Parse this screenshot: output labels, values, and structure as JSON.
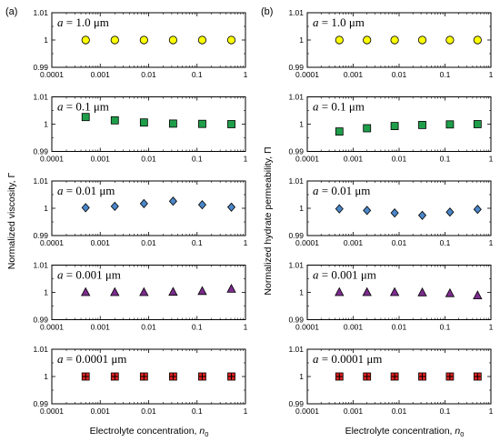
{
  "figure": {
    "panel_labels": [
      "(a)",
      "(b)"
    ],
    "ylabels": [
      "Normalized viscosity, Γ",
      "Normalized hydrate permeability, Π"
    ],
    "xlabel_text": "Electrolyte concentration, ",
    "xlabel_symbol": "n",
    "xlabel_sub": "0"
  },
  "chart_data": [
    {
      "type": "scatter",
      "column": 0,
      "row": 0,
      "annotation": {
        "var": "a",
        "text": " = 1.0 μm"
      },
      "x": [
        0.0005,
        0.002,
        0.008,
        0.032,
        0.128,
        0.512
      ],
      "y": [
        1.0,
        1.0,
        1.0,
        1.0,
        1.0,
        1.0
      ],
      "marker": "circle",
      "color": "#ffff00",
      "xscale": "log",
      "xlim": [
        0.0001,
        1
      ],
      "ylim": [
        0.99,
        1.01
      ],
      "xticks": [
        "0.0001",
        "0.001",
        "0.01",
        "0.1",
        "1"
      ],
      "yticks": [
        "0.99",
        "1",
        "1.01"
      ]
    },
    {
      "type": "scatter",
      "column": 0,
      "row": 1,
      "annotation": {
        "var": "a",
        "text": " = 0.1 μm"
      },
      "x": [
        0.0005,
        0.002,
        0.008,
        0.032,
        0.128,
        0.512
      ],
      "y": [
        1.0026,
        1.0014,
        1.0006,
        1.0002,
        1.0001,
        1.0
      ],
      "marker": "square",
      "color": "#1f9e4a",
      "xscale": "log",
      "xlim": [
        0.0001,
        1
      ],
      "ylim": [
        0.99,
        1.01
      ],
      "xticks": [
        "0.0001",
        "0.001",
        "0.01",
        "0.1",
        "1"
      ],
      "yticks": [
        "0.99",
        "1",
        "1.01"
      ]
    },
    {
      "type": "scatter",
      "column": 0,
      "row": 2,
      "annotation": {
        "var": "a",
        "text": " = 0.01 μm"
      },
      "x": [
        0.0005,
        0.002,
        0.008,
        0.032,
        0.128,
        0.512
      ],
      "y": [
        1.0002,
        1.0007,
        1.0017,
        1.0026,
        1.0013,
        1.0004
      ],
      "marker": "diamond",
      "color": "#4a86c8",
      "xscale": "log",
      "xlim": [
        0.0001,
        1
      ],
      "ylim": [
        0.99,
        1.01
      ],
      "xticks": [
        "0.0001",
        "0.001",
        "0.01",
        "0.1",
        "1"
      ],
      "yticks": [
        "0.99",
        "1",
        "1.01"
      ]
    },
    {
      "type": "scatter",
      "column": 0,
      "row": 3,
      "annotation": {
        "var": "a",
        "text": " = 0.001 μm"
      },
      "x": [
        0.0005,
        0.002,
        0.008,
        0.032,
        0.128,
        0.512
      ],
      "y": [
        1.0,
        1.0,
        1.0,
        1.0001,
        1.0004,
        1.0012
      ],
      "marker": "triangle",
      "color": "#7b2c8c",
      "xscale": "log",
      "xlim": [
        0.0001,
        1
      ],
      "ylim": [
        0.99,
        1.01
      ],
      "xticks": [
        "0.0001",
        "0.001",
        "0.01",
        "0.1",
        "1"
      ],
      "yticks": [
        "0.99",
        "1",
        "1.01"
      ]
    },
    {
      "type": "scatter",
      "column": 0,
      "row": 4,
      "annotation": {
        "var": "a",
        "text": " = 0.0001 μm"
      },
      "x": [
        0.0005,
        0.002,
        0.008,
        0.032,
        0.128,
        0.512
      ],
      "y": [
        1.0,
        1.0,
        1.0,
        1.0,
        1.0,
        1.0
      ],
      "marker": "square-plus",
      "color": "#e02020",
      "xscale": "log",
      "xlim": [
        0.0001,
        1
      ],
      "ylim": [
        0.99,
        1.01
      ],
      "xticks": [
        "0.0001",
        "0.001",
        "0.01",
        "0.1",
        "1"
      ],
      "yticks": [
        "0.99",
        "1",
        "1.01"
      ]
    },
    {
      "type": "scatter",
      "column": 1,
      "row": 0,
      "annotation": {
        "var": "a",
        "text": " = 1.0 μm"
      },
      "x": [
        0.0005,
        0.002,
        0.008,
        0.032,
        0.128,
        0.512
      ],
      "y": [
        1.0,
        1.0,
        1.0,
        1.0,
        1.0,
        1.0
      ],
      "marker": "circle",
      "color": "#ffff00",
      "xscale": "log",
      "xlim": [
        0.0001,
        1
      ],
      "ylim": [
        0.99,
        1.01
      ],
      "xticks": [
        "0.0001",
        "0.001",
        "0.01",
        "0.1",
        "1"
      ],
      "yticks": [
        "0.99",
        "1",
        "1.01"
      ]
    },
    {
      "type": "scatter",
      "column": 1,
      "row": 1,
      "annotation": {
        "var": "a",
        "text": " = 0.1 μm"
      },
      "x": [
        0.0005,
        0.002,
        0.008,
        0.032,
        0.128,
        0.512
      ],
      "y": [
        0.9973,
        0.9985,
        0.9993,
        0.9997,
        0.9999,
        1.0
      ],
      "marker": "square",
      "color": "#1f9e4a",
      "xscale": "log",
      "xlim": [
        0.0001,
        1
      ],
      "ylim": [
        0.99,
        1.01
      ],
      "xticks": [
        "0.0001",
        "0.001",
        "0.01",
        "0.1",
        "1"
      ],
      "yticks": [
        "0.99",
        "1",
        "1.01"
      ]
    },
    {
      "type": "scatter",
      "column": 1,
      "row": 2,
      "annotation": {
        "var": "a",
        "text": " = 0.01 μm"
      },
      "x": [
        0.0005,
        0.002,
        0.008,
        0.032,
        0.128,
        0.512
      ],
      "y": [
        0.9998,
        0.9992,
        0.9983,
        0.9974,
        0.9986,
        0.9996
      ],
      "marker": "diamond",
      "color": "#4a86c8",
      "xscale": "log",
      "xlim": [
        0.0001,
        1
      ],
      "ylim": [
        0.99,
        1.01
      ],
      "xticks": [
        "0.0001",
        "0.001",
        "0.01",
        "0.1",
        "1"
      ],
      "yticks": [
        "0.99",
        "1",
        "1.01"
      ]
    },
    {
      "type": "scatter",
      "column": 1,
      "row": 3,
      "annotation": {
        "var": "a",
        "text": " = 0.001 μm"
      },
      "x": [
        0.0005,
        0.002,
        0.008,
        0.032,
        0.128,
        0.512
      ],
      "y": [
        1.0,
        1.0,
        1.0,
        0.9999,
        0.9996,
        0.9988
      ],
      "marker": "triangle",
      "color": "#7b2c8c",
      "xscale": "log",
      "xlim": [
        0.0001,
        1
      ],
      "ylim": [
        0.99,
        1.01
      ],
      "xticks": [
        "0.0001",
        "0.001",
        "0.01",
        "0.1",
        "1"
      ],
      "yticks": [
        "0.99",
        "1",
        "1.01"
      ]
    },
    {
      "type": "scatter",
      "column": 1,
      "row": 4,
      "annotation": {
        "var": "a",
        "text": " = 0.0001 μm"
      },
      "x": [
        0.0005,
        0.002,
        0.008,
        0.032,
        0.128,
        0.512
      ],
      "y": [
        1.0,
        1.0,
        1.0,
        1.0,
        1.0,
        1.0
      ],
      "marker": "square-plus",
      "color": "#e02020",
      "xscale": "log",
      "xlim": [
        0.0001,
        1
      ],
      "ylim": [
        0.99,
        1.01
      ],
      "xticks": [
        "0.0001",
        "0.001",
        "0.01",
        "0.1",
        "1"
      ],
      "yticks": [
        "0.99",
        "1",
        "1.01"
      ]
    }
  ]
}
